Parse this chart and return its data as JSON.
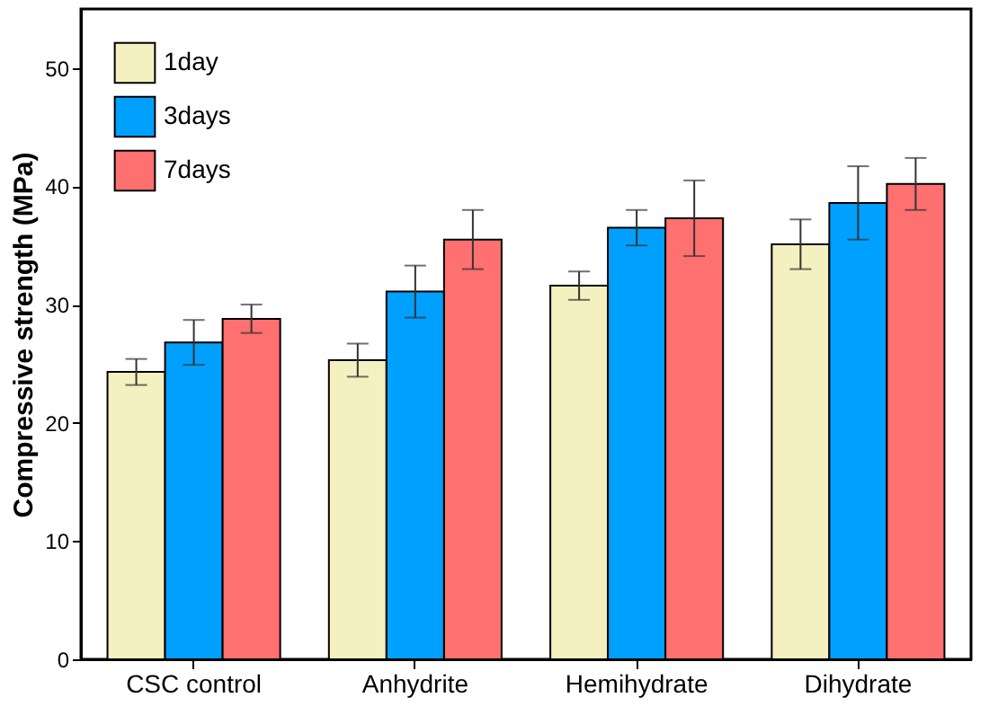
{
  "chart_data": {
    "type": "bar",
    "ylabel": "Compressive strength (MPa)",
    "categories": [
      "CSC control",
      "Anhydrite",
      "Hemihydrate",
      "Dihydrate"
    ],
    "series": [
      {
        "name": "1day",
        "color": "#f5f0c0",
        "values": [
          24.3,
          25.3,
          31.6,
          35.1
        ],
        "errors": [
          1.1,
          1.4,
          1.2,
          2.1
        ]
      },
      {
        "name": "3days",
        "color": "#00a0ff",
        "values": [
          26.8,
          31.1,
          36.5,
          38.6
        ],
        "errors": [
          1.9,
          2.2,
          1.5,
          3.1
        ]
      },
      {
        "name": "7days",
        "color": "#ff7070",
        "values": [
          28.8,
          35.5,
          37.3,
          40.2
        ],
        "errors": [
          1.2,
          2.5,
          3.2,
          2.2
        ]
      }
    ],
    "ylim": [
      0,
      55
    ],
    "yticks": [
      0,
      10,
      20,
      30,
      40,
      50
    ],
    "grid": false,
    "legend": "top left"
  }
}
